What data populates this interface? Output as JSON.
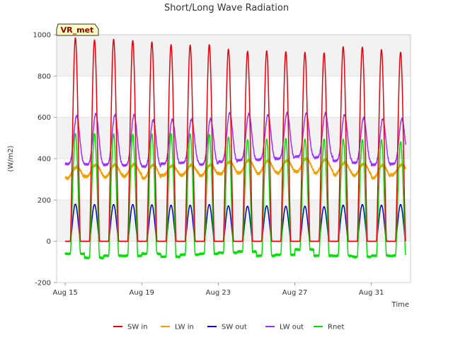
{
  "chart_data": {
    "type": "line",
    "title": "Short/Long Wave Radiation",
    "xlabel": "Time",
    "ylabel": "(W/m2)",
    "site_label": "VR_met",
    "x_start_day": 15,
    "x_end_day": 32.8,
    "ylim": [
      -200,
      1000
    ],
    "yticks": [
      -200,
      0,
      200,
      400,
      600,
      800,
      1000
    ],
    "xticks": [
      {
        "day": 15,
        "label": "Aug 15"
      },
      {
        "day": 19,
        "label": "Aug 19"
      },
      {
        "day": 23,
        "label": "Aug 23"
      },
      {
        "day": 27,
        "label": "Aug 27"
      },
      {
        "day": 31,
        "label": "Aug 31"
      }
    ],
    "legend_position": "bottom",
    "days": [
      15,
      16,
      17,
      18,
      19,
      20,
      21,
      22,
      23,
      24,
      25,
      26,
      27,
      28,
      29,
      30,
      31,
      32
    ],
    "series": [
      {
        "key": "sw_in",
        "name": "SW in",
        "color": "#e8000b",
        "daily_peak": [
          985,
          975,
          978,
          972,
          965,
          952,
          950,
          952,
          930,
          920,
          922,
          918,
          915,
          912,
          942,
          940,
          928,
          915
        ],
        "night_value": 0
      },
      {
        "key": "lw_in",
        "name": "LW in",
        "color": "#f0a000",
        "daily_low": [
          305,
          312,
          310,
          315,
          305,
          318,
          320,
          318,
          325,
          330,
          328,
          330,
          335,
          330,
          322,
          318,
          305,
          322
        ],
        "daily_high": [
          360,
          370,
          370,
          372,
          370,
          365,
          368,
          370,
          385,
          392,
          390,
          392,
          400,
          395,
          380,
          375,
          368,
          370
        ]
      },
      {
        "key": "sw_out",
        "name": "SW out",
        "color": "#0000c8",
        "daily_peak": [
          180,
          178,
          178,
          178,
          177,
          175,
          175,
          178,
          172,
          170,
          172,
          170,
          170,
          168,
          175,
          178,
          175,
          178
        ],
        "night_value": 0
      },
      {
        "key": "lw_out",
        "name": "LW out",
        "color": "#9b30ff",
        "daily_low": [
          375,
          372,
          370,
          368,
          362,
          375,
          380,
          372,
          385,
          392,
          395,
          400,
          410,
          405,
          390,
          380,
          370,
          375
        ],
        "daily_high": [
          608,
          618,
          612,
          612,
          588,
          590,
          590,
          592,
          622,
          618,
          612,
          622,
          620,
          620,
          612,
          598,
          592,
          592
        ]
      },
      {
        "key": "rnet",
        "name": "Rnet",
        "color": "#00e000",
        "daily_peak": [
          522,
          522,
          520,
          518,
          520,
          522,
          520,
          518,
          505,
          492,
          495,
          498,
          495,
          495,
          495,
          492,
          492,
          482
        ],
        "daily_night": [
          -60,
          -80,
          -70,
          -70,
          -60,
          -75,
          -65,
          -60,
          -55,
          -50,
          -70,
          -65,
          -40,
          -70,
          -70,
          -75,
          -70,
          -70
        ]
      }
    ]
  }
}
